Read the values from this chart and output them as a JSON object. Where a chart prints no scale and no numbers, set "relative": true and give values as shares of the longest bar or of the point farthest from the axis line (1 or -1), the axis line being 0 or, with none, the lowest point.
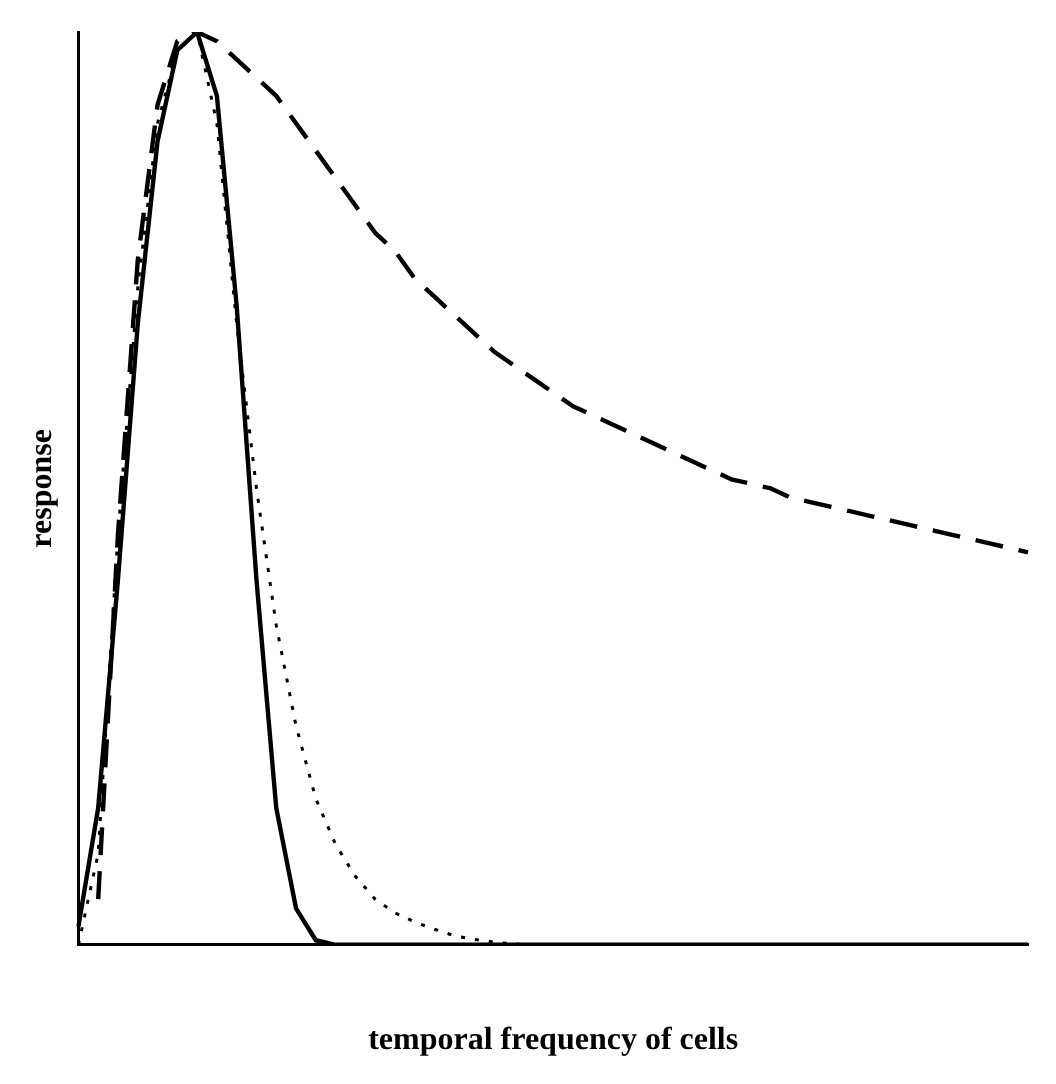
{
  "chart_data": {
    "type": "line",
    "relative": true,
    "xlabel": "temporal frequency of cells",
    "ylabel": "response",
    "grid": false,
    "legend": false,
    "marker": "none",
    "categories": [
      null,
      null,
      null,
      null,
      null,
      null,
      null,
      null,
      null,
      null,
      null,
      null,
      null,
      null,
      null,
      null,
      null,
      null,
      null,
      null,
      null,
      null,
      null,
      null,
      null,
      null,
      null,
      null,
      null,
      null,
      null,
      null,
      null,
      null,
      null,
      null,
      null,
      null,
      null,
      null,
      null,
      null,
      null,
      null,
      null,
      null,
      null,
      null,
      null
    ],
    "series": [
      {
        "color": "#000000",
        "line_style": "solid",
        "values": [
          0.02,
          0.15,
          0.4,
          0.68,
          0.88,
          0.98,
          1.0,
          0.93,
          0.7,
          0.4,
          0.15,
          0.04,
          0.005,
          0,
          0,
          0,
          0,
          0,
          0,
          0,
          0,
          0,
          0,
          0,
          0,
          0,
          0,
          0,
          0,
          0,
          0,
          0,
          0,
          0,
          0,
          0,
          0,
          0,
          0,
          0,
          0,
          0,
          0,
          0,
          0,
          0,
          0,
          0,
          0
        ]
      },
      {
        "color": "#000000",
        "line_style": "dotted",
        "values": [
          0,
          0.1,
          0.45,
          0.72,
          0.9,
          0.98,
          1.0,
          0.9,
          0.68,
          0.5,
          0.35,
          0.24,
          0.16,
          0.11,
          0.075,
          0.05,
          0.035,
          0.025,
          0.017,
          0.01,
          0.006,
          0.003,
          0.001,
          0,
          0,
          null,
          null,
          null,
          null,
          null,
          null,
          null,
          null,
          null,
          null,
          null,
          null,
          null,
          null,
          null,
          null,
          null,
          null,
          null,
          null,
          null,
          null,
          null,
          null
        ]
      },
      {
        "color": "#000000",
        "line_style": "dashed",
        "values": [
          null,
          0.05,
          0.45,
          0.75,
          0.92,
          0.99,
          1.0,
          0.99,
          0.97,
          0.95,
          0.93,
          0.9,
          0.87,
          0.84,
          0.81,
          0.78,
          0.76,
          0.73,
          0.71,
          0.69,
          0.67,
          0.65,
          0.635,
          0.62,
          0.605,
          0.59,
          0.58,
          0.57,
          0.56,
          0.55,
          0.54,
          0.53,
          0.52,
          0.51,
          0.505,
          0.5,
          0.49,
          0.485,
          0.48,
          0.475,
          0.47,
          0.465,
          0.46,
          0.455,
          0.45,
          0.445,
          0.44,
          0.435,
          0.43
        ]
      }
    ]
  }
}
